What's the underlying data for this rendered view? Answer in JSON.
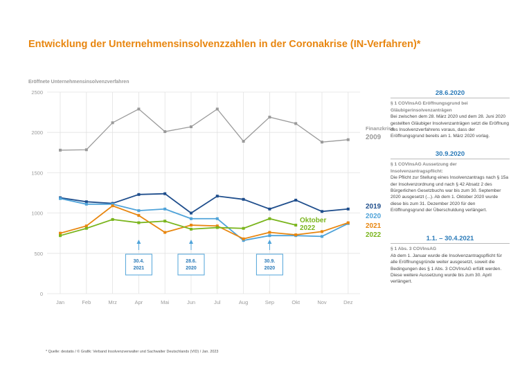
{
  "title": "Entwicklung der Unternehmensinsolvenzzahlen in der Coronakrise (IN-Verfahren)*",
  "footer": "* Quelle: destatis / © Grafik: Verband Insolvenzverwalter und Sachwalter Deutschlands (VID) / Jan. 2023",
  "sidebar": [
    {
      "header": "28.6.2020",
      "subtitle": "§ 1 COVInsAG Eröffnungsgrund bei Gläubigerinsolvenzanträgen",
      "body": "Bei zwischen dem 28. März 2020 und dem 28. Juni 2020 gestellten Gläubiger Insolvenzanträgen setzt die Eröffnung des Insolvenzverfahrens voraus, dass der Eröffnungsgrund bereits am 1. März 2020 vorlag."
    },
    {
      "header": "30.9.2020",
      "subtitle": "§ 1 COVInsAG Aussetzung der Insolvenzantragspflicht:",
      "body": "Die Pflicht zur Stellung eines Insolvenzantrags nach § 15a der Insolvenzordnung und nach § 42 Absatz 2 des Bürgerlichen Gesetzbuchs war bis zum 30. September 2020 ausgesetzt (...). Ab dem 1. Oktober 2020 wurde diese bis zum 31. Dezember 2020 für den Eröffnungsgrund der Überschuldung verlängert."
    },
    {
      "header": "1.1. – 30.4.2021",
      "subtitle": "§ 1 Abs. 3 COVInsAG",
      "body": "Ab dem 1. Januar wurde die Insolvenzantragspflicht für alle Eröffnungsgründe weiter ausgesetzt, soweit die Bedingungen des § 1 Abs. 3 COVInsAG erfüllt werden. Diese weitere Aussetzung wurde bis zum 30. April verlängert."
    }
  ],
  "colors": {
    "title": "#e8860f",
    "2009": "#9a9a9a",
    "2019": "#1f4e8c",
    "2020": "#4fa3d9",
    "2021": "#e8860f",
    "2022": "#7ab51d",
    "callout": "#4fa3d9",
    "axis_text": "#9a9a9a"
  },
  "chart_data": {
    "type": "line",
    "ylabel": "Eröffnete Unternehmensinsolvenzverfahren",
    "ylim": [
      0,
      2500
    ],
    "yticks": [
      0,
      500,
      1000,
      1500,
      2000,
      2500
    ],
    "categories": [
      "Jan",
      "Feb",
      "Mrz",
      "Apr",
      "Mai",
      "Jun",
      "Jul",
      "Aug",
      "Sep",
      "Okt",
      "Nov",
      "Dez"
    ],
    "grid": true,
    "series": [
      {
        "name": "Finanzkrise 2009",
        "label_lines": [
          "Finanzkrise",
          "2009"
        ],
        "color_key": "2009",
        "values": [
          1780,
          1785,
          2120,
          2290,
          2010,
          2070,
          2290,
          1890,
          2190,
          2110,
          1880,
          1910
        ]
      },
      {
        "name": "2019",
        "label_lines": [
          "2019"
        ],
        "color_key": "2019",
        "values": [
          1190,
          1140,
          1120,
          1230,
          1240,
          1000,
          1210,
          1170,
          1050,
          1160,
          1020,
          1050
        ]
      },
      {
        "name": "2020",
        "label_lines": [
          "2020"
        ],
        "color_key": "2020",
        "values": [
          1180,
          1110,
          1110,
          1030,
          1050,
          930,
          930,
          660,
          720,
          720,
          710,
          870
        ]
      },
      {
        "name": "2021",
        "label_lines": [
          "2021"
        ],
        "color_key": "2021",
        "values": [
          750,
          840,
          1090,
          970,
          760,
          850,
          840,
          680,
          760,
          730,
          770,
          880
        ]
      },
      {
        "name": "2022",
        "label_lines": [
          "2022"
        ],
        "color_key": "2022",
        "values": [
          720,
          810,
          920,
          880,
          900,
          800,
          820,
          810,
          930,
          850,
          null,
          null
        ]
      }
    ],
    "annotations": [
      {
        "text": "Oktober 2022",
        "lines": [
          "Oktober",
          "2022"
        ],
        "color_key": "2022"
      }
    ],
    "callouts": [
      {
        "lines": [
          "30.4.",
          "2021"
        ],
        "month_index": 3
      },
      {
        "lines": [
          "28.6.",
          "2020"
        ],
        "month_index": 5
      },
      {
        "lines": [
          "30.9.",
          "2020"
        ],
        "month_index": 8
      }
    ]
  }
}
